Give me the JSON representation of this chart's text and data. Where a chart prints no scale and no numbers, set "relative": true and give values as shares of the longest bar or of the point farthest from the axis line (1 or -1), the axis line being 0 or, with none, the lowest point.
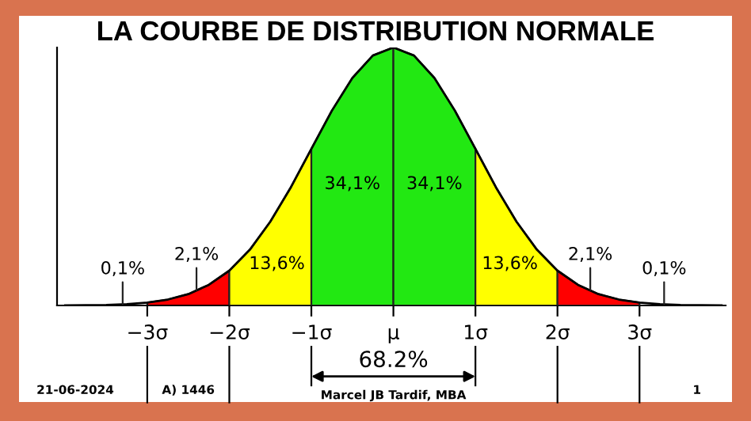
{
  "chart_data": {
    "type": "area",
    "title": "LA COURBE DE DISTRIBUTION NORMALE",
    "relative": true,
    "xlim": [
      -4.1,
      4.05
    ],
    "xticks": [
      {
        "value": -3,
        "label": "−3σ"
      },
      {
        "value": -2,
        "label": "−2σ"
      },
      {
        "value": -1,
        "label": "−1σ"
      },
      {
        "value": 0,
        "label": "μ"
      },
      {
        "value": 1,
        "label": "1σ"
      },
      {
        "value": 2,
        "label": "2σ"
      },
      {
        "value": 3,
        "label": "3σ"
      }
    ],
    "grid": false,
    "series": [
      {
        "color": "#ff0000",
        "x": [
          -3,
          -2.75,
          -2.5,
          -2.25,
          -2
        ],
        "values": [
          0.011,
          0.023,
          0.044,
          0.08,
          0.135
        ]
      },
      {
        "color": "#ffff00",
        "x": [
          -2,
          -1.75,
          -1.5,
          -1.25,
          -1
        ],
        "values": [
          0.135,
          0.216,
          0.325,
          0.458,
          0.607
        ]
      },
      {
        "color": "#22e812",
        "x": [
          -1,
          -0.75,
          -0.5,
          -0.25,
          0
        ],
        "values": [
          0.607,
          0.755,
          0.882,
          0.969,
          1
        ]
      },
      {
        "color": "#22e812",
        "x": [
          0,
          0.25,
          0.5,
          0.75,
          1
        ],
        "values": [
          1,
          0.969,
          0.882,
          0.755,
          0.607
        ]
      },
      {
        "color": "#ffff00",
        "x": [
          1,
          1.25,
          1.5,
          1.75,
          2
        ],
        "values": [
          0.607,
          0.458,
          0.325,
          0.216,
          0.135
        ]
      },
      {
        "color": "#ff0000",
        "x": [
          2,
          2.25,
          2.5,
          2.75,
          3
        ],
        "values": [
          0.135,
          0.08,
          0.044,
          0.023,
          0.011
        ]
      },
      {
        "type": "line",
        "color": "#000000",
        "x": [
          -4,
          -3.75,
          -3.5,
          -3.25,
          -3,
          -2.75,
          -2.5,
          -2.25,
          -2,
          -1.75,
          -1.5,
          -1.25,
          -1,
          -0.75,
          -0.5,
          -0.25,
          0,
          0.25,
          0.5,
          0.75,
          1,
          1.25,
          1.5,
          1.75,
          2,
          2.25,
          2.5,
          2.75,
          3,
          3.25,
          3.5,
          3.75,
          4
        ],
        "values": [
          0.0003,
          0.0009,
          0.002,
          0.005,
          0.011,
          0.023,
          0.044,
          0.08,
          0.135,
          0.216,
          0.325,
          0.458,
          0.607,
          0.755,
          0.882,
          0.969,
          1,
          0.969,
          0.882,
          0.755,
          0.607,
          0.458,
          0.325,
          0.216,
          0.135,
          0.08,
          0.044,
          0.023,
          0.011,
          0.005,
          0.002,
          0.0009,
          0.0003
        ]
      }
    ],
    "annotations": [
      "34,1%",
      "34,1%",
      "13,6%",
      "13,6%",
      {
        "text": "2,1%",
        "x": -2.4,
        "y": 0.06
      },
      {
        "text": "2,1%",
        "x": 2.4,
        "y": 0.06
      },
      {
        "text": "0,1%",
        "x": -3.3,
        "y": 0.005
      },
      {
        "text": "0,1%",
        "x": 3.3,
        "y": 0.005
      },
      "68.2%",
      "21-06-2024",
      "A) 1446",
      "Marcel JB Tardif, MBA",
      "1"
    ]
  }
}
